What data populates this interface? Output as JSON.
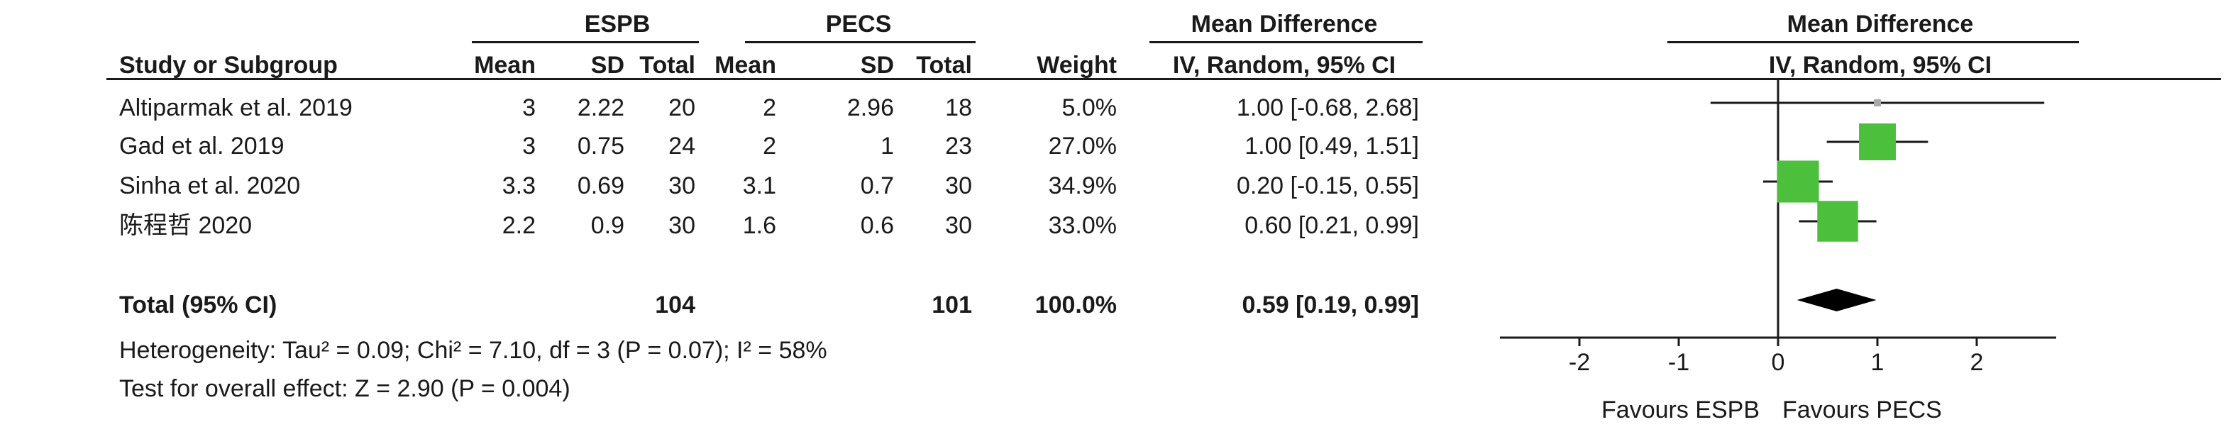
{
  "headers": {
    "group1": "ESPB",
    "group2": "PECS",
    "effect_title": "Mean Difference",
    "study": "Study or Subgroup",
    "mean": "Mean",
    "sd": "SD",
    "total": "Total",
    "weight": "Weight",
    "effect_method": "IV, Random, 95% CI",
    "plot_title": "Mean Difference",
    "plot_method": "IV, Random, 95% CI"
  },
  "studies": [
    {
      "name": "Altiparmak et al. 2019",
      "e_mean": "3",
      "e_sd": "2.22",
      "e_total": "20",
      "c_mean": "2",
      "c_sd": "2.96",
      "c_total": "18",
      "weight": "5.0%",
      "ci": "1.00 [-0.68, 2.68]"
    },
    {
      "name": "Gad et al. 2019",
      "e_mean": "3",
      "e_sd": "0.75",
      "e_total": "24",
      "c_mean": "2",
      "c_sd": "1",
      "c_total": "23",
      "weight": "27.0%",
      "ci": "1.00 [0.49, 1.51]"
    },
    {
      "name": "Sinha et al. 2020",
      "e_mean": "3.3",
      "e_sd": "0.69",
      "e_total": "30",
      "c_mean": "3.1",
      "c_sd": "0.7",
      "c_total": "30",
      "weight": "34.9%",
      "ci": "0.20 [-0.15, 0.55]"
    },
    {
      "name": "陈程哲 2020",
      "e_mean": "2.2",
      "e_sd": "0.9",
      "e_total": "30",
      "c_mean": "1.6",
      "c_sd": "0.6",
      "c_total": "30",
      "weight": "33.0%",
      "ci": "0.60 [0.21, 0.99]"
    }
  ],
  "total": {
    "label": "Total (95% CI)",
    "e_total": "104",
    "c_total": "101",
    "weight": "100.0%",
    "ci": "0.59 [0.19, 0.99]"
  },
  "footer": {
    "heterogeneity": "Heterogeneity: Tau² = 0.09; Chi² = 7.10, df = 3 (P = 0.07); I² = 58%",
    "overall": "Test for overall effect: Z = 2.90 (P = 0.004)"
  },
  "axis": {
    "favours_left": "Favours ESPB",
    "favours_right": "Favours PECS"
  },
  "colors": {
    "square": "#4cbf3c",
    "square_light": "#a9a9a9",
    "diamond": "#000000",
    "line": "#1a1a1a"
  },
  "chart_data": {
    "type": "forest",
    "xlim": [
      -2.8,
      2.8
    ],
    "xticks": [
      -2,
      -1,
      0,
      1,
      2
    ],
    "null_value": 0,
    "studies": [
      {
        "estimate": 1.0,
        "lower": -0.68,
        "upper": 2.68,
        "weight": 5.0
      },
      {
        "estimate": 1.0,
        "lower": 0.49,
        "upper": 1.51,
        "weight": 27.0
      },
      {
        "estimate": 0.2,
        "lower": -0.15,
        "upper": 0.55,
        "weight": 34.9
      },
      {
        "estimate": 0.6,
        "lower": 0.21,
        "upper": 0.99,
        "weight": 33.0
      }
    ],
    "pooled": {
      "estimate": 0.59,
      "lower": 0.19,
      "upper": 0.99
    }
  }
}
